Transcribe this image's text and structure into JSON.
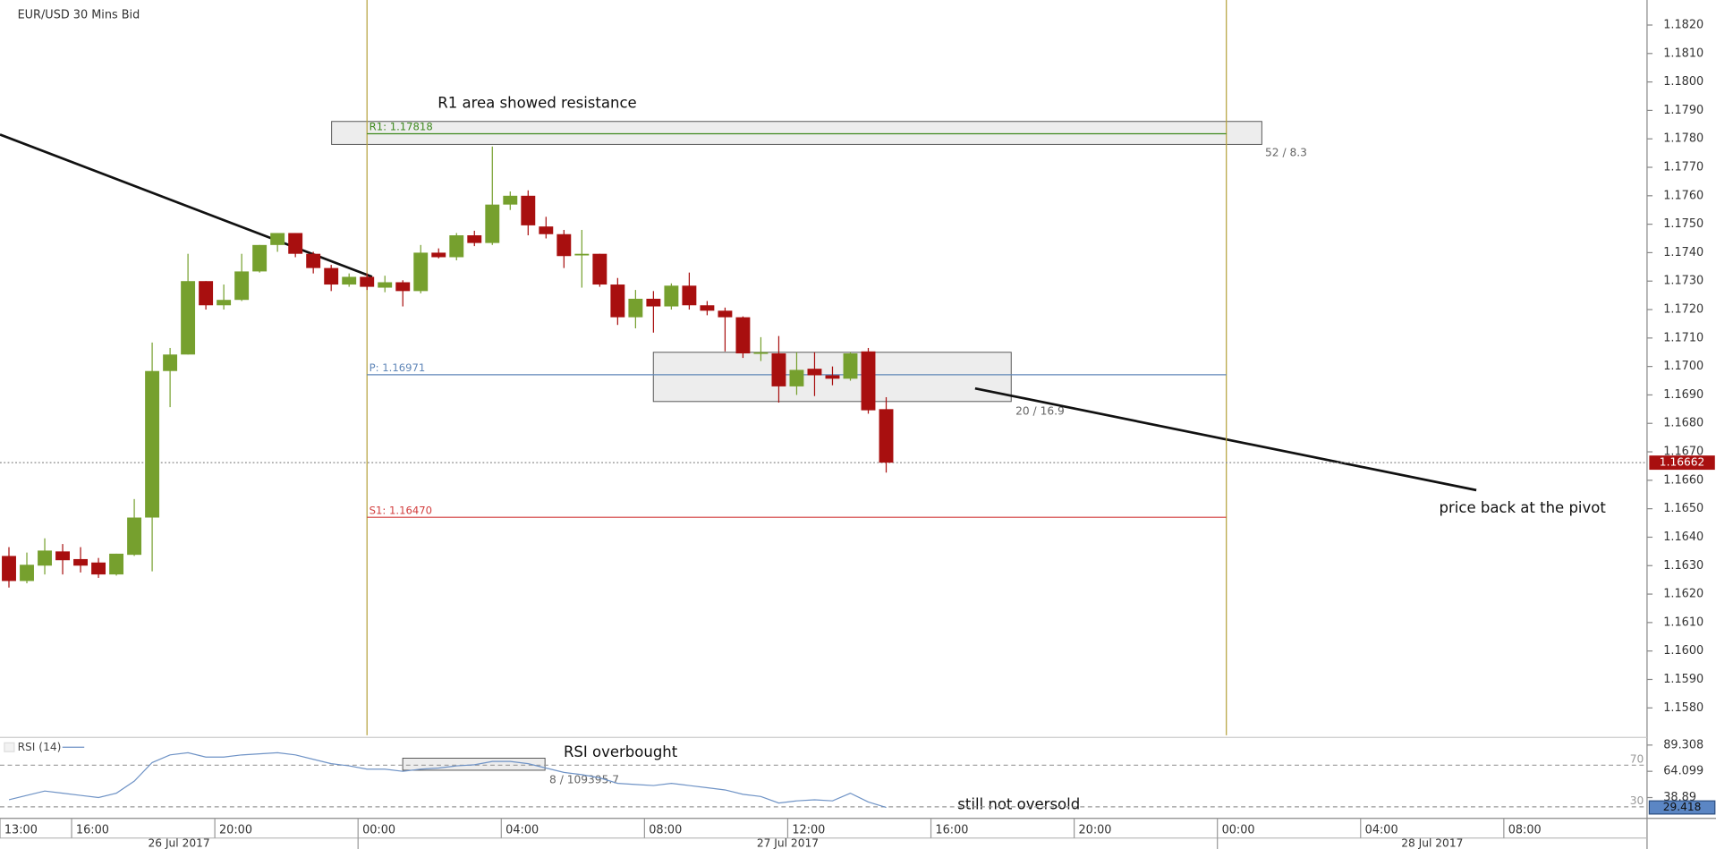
{
  "chart_data": {
    "type": "candlestick",
    "title": "EUR/USD  30 Mins Bid",
    "up_color": "#76a02e",
    "down_color": "#a80f0f",
    "x": [
      14.25,
      14.75,
      15.25,
      15.75,
      16.25,
      16.75,
      17.25,
      17.75,
      18.25,
      18.75,
      19.25,
      19.75,
      20.25,
      20.75,
      21.25,
      21.75,
      22.25,
      22.75,
      23.25,
      23.75,
      24.25,
      24.75,
      25.25,
      25.75,
      26.25,
      26.75,
      27.25,
      27.75,
      28.25,
      28.75,
      29.25,
      29.75,
      30.25,
      30.75,
      31.25,
      31.75,
      32.25,
      32.75,
      33.25,
      33.75,
      34.25,
      34.75,
      35.25,
      35.75,
      36.25,
      36.75,
      37.25,
      37.75,
      38.25,
      38.75
    ],
    "open": [
      1.16334,
      1.16246,
      1.163,
      1.1635,
      1.16323,
      1.16311,
      1.16269,
      1.16338,
      1.16469,
      1.16984,
      1.17042,
      1.173,
      1.17215,
      1.17234,
      1.17334,
      1.17427,
      1.17469,
      1.17396,
      1.17346,
      1.17288,
      1.17315,
      1.17277,
      1.17296,
      1.17265,
      1.174,
      1.17384,
      1.17461,
      1.17434,
      1.17569,
      1.176,
      1.17492,
      1.17465,
      1.17392,
      1.17396,
      1.17288,
      1.17173,
      1.17238,
      1.17211,
      1.17284,
      1.17215,
      1.17196,
      1.17173,
      1.17046,
      1.17046,
      1.1693,
      1.16992,
      1.16969,
      1.16957,
      1.17053,
      1.1685
    ],
    "high": [
      1.16365,
      1.16346,
      1.16396,
      1.16376,
      1.16365,
      1.16327,
      1.16342,
      1.16534,
      1.17084,
      1.17065,
      1.17396,
      1.173,
      1.17288,
      1.17396,
      1.17427,
      1.17469,
      1.17469,
      1.17403,
      1.17357,
      1.17327,
      1.17327,
      1.17319,
      1.17303,
      1.17427,
      1.17415,
      1.17469,
      1.17477,
      1.17773,
      1.17615,
      1.17619,
      1.17526,
      1.1748,
      1.1748,
      1.17396,
      1.17311,
      1.17269,
      1.17265,
      1.17292,
      1.1733,
      1.1723,
      1.17207,
      1.17176,
      1.17103,
      1.17107,
      1.1705,
      1.1705,
      1.17,
      1.1705,
      1.17065,
      1.16892
    ],
    "low": [
      1.16223,
      1.16238,
      1.16269,
      1.16269,
      1.16276,
      1.16257,
      1.16265,
      1.16334,
      1.1628,
      1.16857,
      1.17042,
      1.172,
      1.172,
      1.1723,
      1.1733,
      1.17403,
      1.17384,
      1.17327,
      1.17265,
      1.1728,
      1.17269,
      1.17261,
      1.17211,
      1.17257,
      1.1738,
      1.17373,
      1.17423,
      1.17427,
      1.1755,
      1.17461,
      1.1745,
      1.17346,
      1.17277,
      1.1728,
      1.17146,
      1.17134,
      1.17119,
      1.172,
      1.172,
      1.1718,
      1.17053,
      1.1703,
      1.17019,
      1.16873,
      1.169,
      1.16896,
      1.16934,
      1.1695,
      1.16834,
      1.16627
    ],
    "close": [
      1.16246,
      1.16303,
      1.16353,
      1.16319,
      1.163,
      1.16269,
      1.16342,
      1.16469,
      1.16984,
      1.17042,
      1.173,
      1.17215,
      1.17234,
      1.17334,
      1.17427,
      1.17469,
      1.17396,
      1.17346,
      1.17288,
      1.17315,
      1.1728,
      1.17296,
      1.17265,
      1.174,
      1.17384,
      1.17461,
      1.17434,
      1.17569,
      1.176,
      1.17496,
      1.17465,
      1.17388,
      1.17396,
      1.17288,
      1.17173,
      1.17238,
      1.17211,
      1.17284,
      1.17215,
      1.17196,
      1.17173,
      1.17046,
      1.1705,
      1.1693,
      1.16988,
      1.16969,
      1.16957,
      1.17046,
      1.16846,
      1.16662
    ],
    "xlim": [
      14,
      60
    ],
    "ylim": [
      1.15704,
      1.18288
    ],
    "yticks": [
      {
        "value": 1.158,
        "label": "1.1580"
      },
      {
        "value": 1.159,
        "label": "1.1590"
      },
      {
        "value": 1.16,
        "label": "1.1600"
      },
      {
        "value": 1.161,
        "label": "1.1610"
      },
      {
        "value": 1.162,
        "label": "1.1620"
      },
      {
        "value": 1.163,
        "label": "1.1630"
      },
      {
        "value": 1.164,
        "label": "1.1640"
      },
      {
        "value": 1.165,
        "label": "1.1650"
      },
      {
        "value": 1.166,
        "label": "1.1660"
      },
      {
        "value": 1.167,
        "label": "1.1670"
      },
      {
        "value": 1.168,
        "label": "1.1680"
      },
      {
        "value": 1.169,
        "label": "1.1690"
      },
      {
        "value": 1.17,
        "label": "1.1700"
      },
      {
        "value": 1.171,
        "label": "1.1710"
      },
      {
        "value": 1.172,
        "label": "1.1720"
      },
      {
        "value": 1.173,
        "label": "1.1730"
      },
      {
        "value": 1.174,
        "label": "1.1740"
      },
      {
        "value": 1.175,
        "label": "1.1750"
      },
      {
        "value": 1.176,
        "label": "1.1760"
      },
      {
        "value": 1.177,
        "label": "1.1770"
      },
      {
        "value": 1.178,
        "label": "1.1780"
      },
      {
        "value": 1.179,
        "label": "1.1790"
      },
      {
        "value": 1.18,
        "label": "1.1800"
      },
      {
        "value": 1.181,
        "label": "1.1810"
      },
      {
        "value": 1.182,
        "label": "1.1820"
      }
    ],
    "xticks": [
      {
        "value": 13,
        "label": "13:00"
      },
      {
        "value": 16,
        "label": "16:00"
      },
      {
        "value": 20,
        "label": "20:00"
      },
      {
        "value": 24,
        "label": "00:00"
      },
      {
        "value": 28,
        "label": "04:00"
      },
      {
        "value": 32,
        "label": "08:00"
      },
      {
        "value": 36,
        "label": "12:00"
      },
      {
        "value": 40,
        "label": "16:00"
      },
      {
        "value": 44,
        "label": "20:00"
      },
      {
        "value": 48,
        "label": "00:00"
      },
      {
        "value": 52,
        "label": "04:00"
      },
      {
        "value": 56,
        "label": "08:00"
      }
    ],
    "date_labels": [
      {
        "value": 0,
        "label": "26 Jul 2017"
      },
      {
        "value": 24,
        "label": "27 Jul 2017"
      },
      {
        "value": 48,
        "label": "28 Jul 2017"
      }
    ],
    "session_lines": [
      24.25,
      48.25
    ],
    "pivots": [
      {
        "label": "R1: 1.17818",
        "value": 1.17818,
        "color": "#3f8a1f"
      },
      {
        "label": "P: 1.16971",
        "value": 1.16971,
        "color": "#5f86b8"
      },
      {
        "label": "S1: 1.16470",
        "value": 1.1647,
        "color": "#d23c3c"
      }
    ],
    "last_price": 1.16662,
    "annotations": [
      "R1 area showed resistance",
      "price back at the pivot",
      "RSI overbought",
      "still not oversold"
    ],
    "box_labels": [
      "52 / 8.3",
      "20 / 16.9",
      "8 / 109395.7"
    ],
    "rsi": {
      "title": "RSI (14)",
      "color": "#6f93c6",
      "values": [
        36.79,
        40.99,
        45.19,
        43.09,
        40.99,
        38.89,
        43.09,
        54.65,
        72.5,
        79.85,
        81.96,
        77.76,
        77.76,
        79.85,
        80.91,
        81.96,
        79.85,
        75.65,
        71.45,
        69.35,
        66.2,
        66.2,
        64.1,
        66.2,
        67.25,
        69.35,
        70.4,
        73.55,
        73.55,
        71.45,
        67.25,
        63.05,
        60.95,
        57.8,
        52.54,
        51.49,
        50.44,
        52.54,
        50.44,
        48.34,
        46.24,
        42.04,
        39.94,
        33.64,
        35.74,
        36.79,
        35.74,
        43.09,
        34.69,
        29.418
      ],
      "ylim": [
        18.93,
        94.56
      ],
      "yticks": [
        89.308,
        64.099,
        38.89
      ],
      "levels": [
        70,
        30
      ]
    }
  }
}
